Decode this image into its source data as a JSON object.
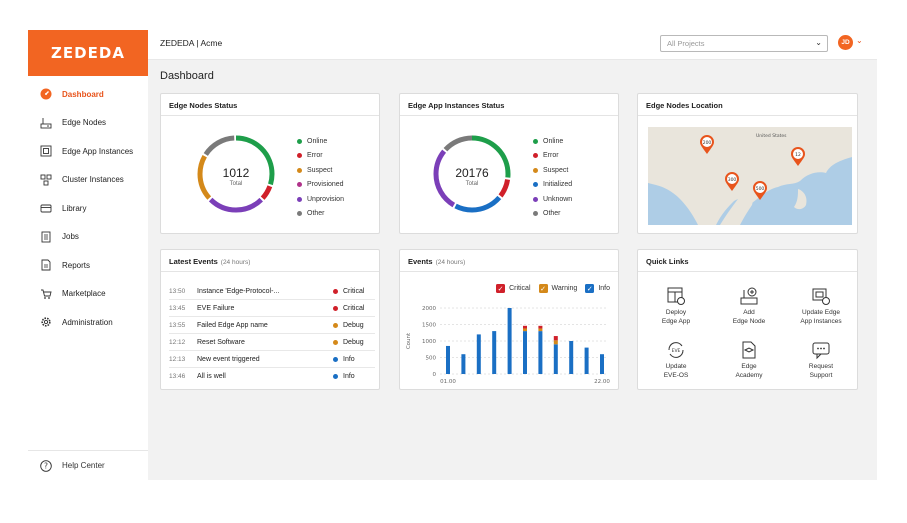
{
  "brand": {
    "logo_text": "ZEDEDA",
    "accent": "#f26522"
  },
  "header": {
    "breadcrumb": "ZEDEDA | Acme",
    "project_select_value": "All Projects",
    "avatar_initials": "JD"
  },
  "sidebar": {
    "items": [
      {
        "label": "Dashboard",
        "icon": "dashboard-icon",
        "active": true
      },
      {
        "label": "Edge Nodes",
        "icon": "edge-node-icon"
      },
      {
        "label": "Edge App Instances",
        "icon": "app-instance-icon"
      },
      {
        "label": "Cluster Instances",
        "icon": "cluster-icon"
      },
      {
        "label": "Library",
        "icon": "library-icon"
      },
      {
        "label": "Jobs",
        "icon": "jobs-icon"
      },
      {
        "label": "Reports",
        "icon": "reports-icon"
      },
      {
        "label": "Marketplace",
        "icon": "cart-icon"
      },
      {
        "label": "Administration",
        "icon": "gear-icon"
      }
    ],
    "help_label": "Help Center"
  },
  "page": {
    "title": "Dashboard"
  },
  "edge_nodes_status": {
    "title": "Edge Nodes Status",
    "total": "1012",
    "total_label": "Total",
    "legend": [
      {
        "label": "Online",
        "color": "#1e9e4a"
      },
      {
        "label": "Error",
        "color": "#d0202a"
      },
      {
        "label": "Suspect",
        "color": "#d4891a"
      },
      {
        "label": "Provisioned",
        "color": "#b0338a"
      },
      {
        "label": "Unprovision",
        "color": "#7b3fb8"
      },
      {
        "label": "Other",
        "color": "#7a7a7a"
      }
    ]
  },
  "app_instances_status": {
    "title": "Edge App Instances Status",
    "total": "20176",
    "total_label": "Total",
    "legend": [
      {
        "label": "Online",
        "color": "#1e9e4a"
      },
      {
        "label": "Error",
        "color": "#d0202a"
      },
      {
        "label": "Suspect",
        "color": "#d4891a"
      },
      {
        "label": "Initialized",
        "color": "#1a6fc4"
      },
      {
        "label": "Unknown",
        "color": "#7b3fb8"
      },
      {
        "label": "Other",
        "color": "#7a7a7a"
      }
    ]
  },
  "edge_nodes_location": {
    "title": "Edge Nodes Location",
    "map_label": "United States",
    "pins": [
      "200",
      "12",
      "300",
      "500"
    ]
  },
  "latest_events": {
    "title": "Latest Events",
    "subtitle": "(24 hours)",
    "rows": [
      {
        "time": "13:50",
        "message": "Instance 'Edge-Protocol-...",
        "severity": "Critical",
        "color": "#d0202a"
      },
      {
        "time": "13:45",
        "message": "EVE Failure",
        "severity": "Critical",
        "color": "#d0202a"
      },
      {
        "time": "13:55",
        "message": "Failed Edge App name",
        "severity": "Debug",
        "color": "#d4891a"
      },
      {
        "time": "12:12",
        "message": "Reset Software",
        "severity": "Debug",
        "color": "#d4891a"
      },
      {
        "time": "12:13",
        "message": "New event triggered",
        "severity": "Info",
        "color": "#1a6fc4"
      },
      {
        "time": "13:46",
        "message": "All is well",
        "severity": "Info",
        "color": "#1a6fc4"
      }
    ]
  },
  "events_chart_card": {
    "title": "Events",
    "subtitle": "(24 hours)",
    "legend": [
      {
        "label": "Critical",
        "color": "#d0202a"
      },
      {
        "label": "Warning",
        "color": "#d4891a"
      },
      {
        "label": "Info",
        "color": "#1a6fc4"
      }
    ]
  },
  "chart_data": {
    "type": "bar",
    "title": "Events",
    "ylabel": "Count",
    "ylim": [
      0,
      2000
    ],
    "yticks": [
      0,
      500,
      1000,
      1500,
      2000
    ],
    "x_tick_labels": [
      "01.00",
      "22.00"
    ],
    "grid": true,
    "stacked": true,
    "series": [
      {
        "name": "Info",
        "color": "#1a6fc4",
        "values": [
          850,
          600,
          1200,
          1300,
          2000,
          1300,
          1300,
          900,
          1000,
          800,
          600
        ]
      },
      {
        "name": "Warning",
        "color": "#d4891a",
        "values": [
          0,
          0,
          0,
          0,
          0,
          80,
          80,
          120,
          0,
          0,
          0
        ]
      },
      {
        "name": "Critical",
        "color": "#d0202a",
        "values": [
          0,
          0,
          0,
          0,
          0,
          80,
          80,
          130,
          0,
          0,
          0
        ]
      }
    ]
  },
  "quick_links": {
    "title": "Quick Links",
    "items": [
      {
        "label_1": "Deploy",
        "label_2": "Edge App",
        "icon": "deploy-app-icon"
      },
      {
        "label_1": "Add",
        "label_2": "Edge Node",
        "icon": "add-node-icon"
      },
      {
        "label_1": "Update Edge",
        "label_2": "App Instances",
        "icon": "update-app-icon"
      },
      {
        "label_1": "Update",
        "label_2": "EVE-OS",
        "icon": "update-os-icon"
      },
      {
        "label_1": "Edge",
        "label_2": "Academy",
        "icon": "academy-icon"
      },
      {
        "label_1": "Request",
        "label_2": "Support",
        "icon": "support-icon"
      }
    ]
  }
}
